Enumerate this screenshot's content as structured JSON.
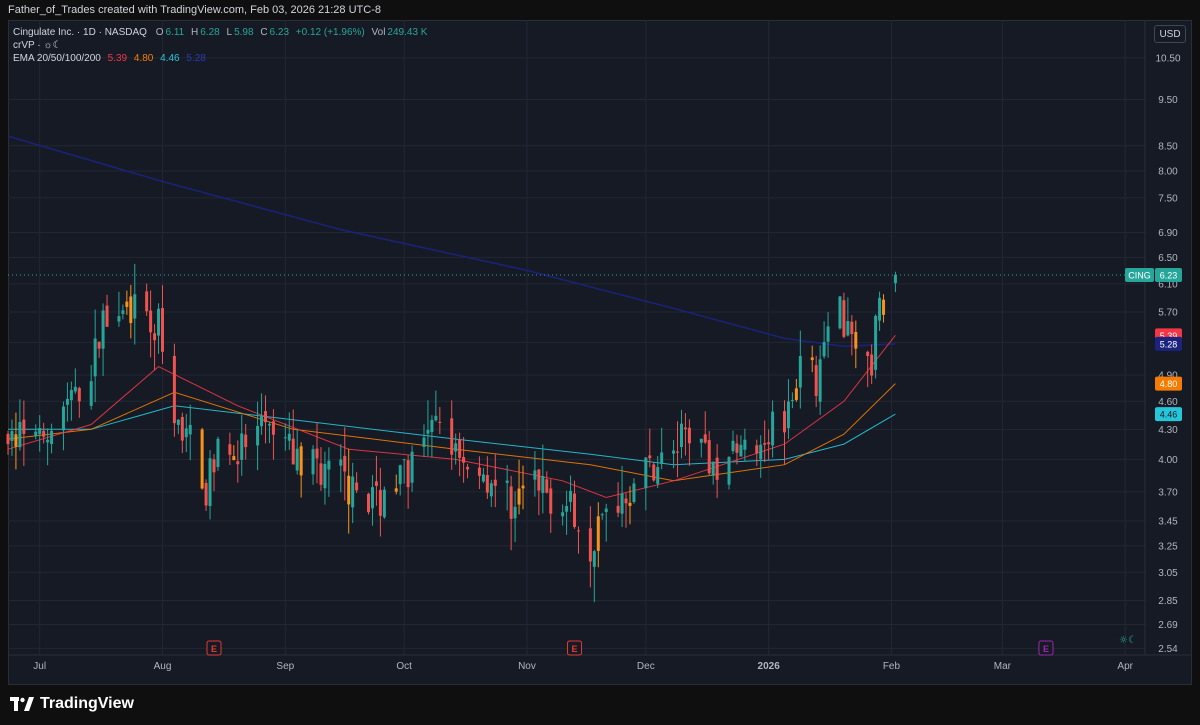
{
  "header": {
    "credit": "Father_of_Trades created with TradingView.com, Feb 03, 2026 21:28 UTC-8"
  },
  "legend": {
    "symbol": "Cingulate Inc. · 1D · NASDAQ",
    "o_label": "O",
    "o": "6.11",
    "h_label": "H",
    "h": "6.28",
    "l_label": "L",
    "l": "5.98",
    "c_label": "C",
    "c": "6.23",
    "change": "+0.12 (+1.96%)",
    "vol_label": "Vol",
    "vol": "249.43 K",
    "line2": "crVP · ☼☾",
    "ema_label": "EMA 20/50/100/200",
    "ema20": "5.39",
    "ema50": "4.80",
    "ema100": "4.46",
    "ema200": "5.28"
  },
  "currency": "USD",
  "brand": "TradingView",
  "colors": {
    "up": "#26a69a",
    "down": "#ef5350",
    "neutral": "#f7931a",
    "ema20": "#f23645",
    "ema50": "#f57c00",
    "ema100": "#26c6da",
    "ema200": "#1a237e",
    "earnings": "#e53935",
    "dividend": "#9c27b0"
  },
  "chart_data": {
    "type": "candlestick",
    "symbol": "CING",
    "y_scale": "log",
    "y_ticks": [
      "10.50",
      "9.50",
      "8.50",
      "8.00",
      "7.50",
      "6.90",
      "6.50",
      "6.10",
      "5.70",
      "5.30",
      "4.90",
      "4.60",
      "4.30",
      "4.00",
      "3.70",
      "3.45",
      "3.25",
      "3.05",
      "2.85",
      "2.69",
      "2.54"
    ],
    "x_ticks": [
      "Jul",
      "Aug",
      "Sep",
      "Oct",
      "Nov",
      "Dec",
      "2026",
      "Feb",
      "Mar",
      "Apr"
    ],
    "x_tick_dates": [
      "2025-07-01",
      "2025-08-01",
      "2025-09-01",
      "2025-10-01",
      "2025-11-01",
      "2025-12-01",
      "2026-01-01",
      "2026-02-01",
      "2026-03-01",
      "2026-04-01"
    ],
    "x_range": [
      "2025-06-23",
      "2026-04-06"
    ],
    "y_range": [
      2.5,
      11.5
    ],
    "last_price": {
      "label": "CING",
      "value": "6.23"
    },
    "price_labels": [
      {
        "value": "5.39",
        "color": "#f23645"
      },
      {
        "value": "5.28",
        "color": "#1a237e"
      },
      {
        "value": "4.80",
        "color": "#f57c00"
      },
      {
        "value": "4.46",
        "color": "#26c6da"
      }
    ],
    "earnings_markers": [
      {
        "date": "2025-08-14",
        "label": "E"
      },
      {
        "date": "2025-11-13",
        "label": "E"
      },
      {
        "date": "2026-03-12",
        "label": "E"
      }
    ],
    "ohlc_points": [
      [
        "2025-06-23",
        4.2
      ],
      [
        "2025-07-01",
        4.15
      ],
      [
        "2025-07-07",
        4.5
      ],
      [
        "2025-07-14",
        4.85
      ],
      [
        "2025-07-17",
        5.6
      ],
      [
        "2025-07-21",
        5.95
      ],
      [
        "2025-07-25",
        5.6
      ],
      [
        "2025-07-31",
        5.5
      ],
      [
        "2025-08-01",
        5.05
      ],
      [
        "2025-08-04",
        4.3
      ],
      [
        "2025-08-08",
        4.2
      ],
      [
        "2025-08-12",
        3.7
      ],
      [
        "2025-08-15",
        4.2
      ],
      [
        "2025-08-20",
        4.05
      ],
      [
        "2025-08-27",
        4.3
      ],
      [
        "2025-09-03",
        4.05
      ],
      [
        "2025-09-10",
        3.95
      ],
      [
        "2025-09-17",
        3.75
      ],
      [
        "2025-09-24",
        3.65
      ],
      [
        "2025-10-01",
        3.9
      ],
      [
        "2025-10-06",
        4.1
      ],
      [
        "2025-10-10",
        4.35
      ],
      [
        "2025-10-14",
        4.15
      ],
      [
        "2025-10-20",
        3.9
      ],
      [
        "2025-10-27",
        3.65
      ],
      [
        "2025-11-03",
        3.75
      ],
      [
        "2025-11-10",
        3.65
      ],
      [
        "2025-11-17",
        3.3
      ],
      [
        "2025-11-21",
        3.5
      ],
      [
        "2025-11-25",
        3.7
      ],
      [
        "2025-12-01",
        3.9
      ],
      [
        "2025-12-08",
        4.05
      ],
      [
        "2025-12-12",
        4.4
      ],
      [
        "2025-12-16",
        4.0
      ],
      [
        "2025-12-22",
        4.05
      ],
      [
        "2025-12-29",
        4.2
      ],
      [
        "2026-01-05",
        4.55
      ],
      [
        "2026-01-09",
        4.95
      ],
      [
        "2026-01-13",
        4.8
      ],
      [
        "2026-01-16",
        5.5
      ],
      [
        "2026-01-20",
        5.75
      ],
      [
        "2026-01-23",
        5.4
      ],
      [
        "2026-01-27",
        4.95
      ],
      [
        "2026-01-29",
        5.85
      ],
      [
        "2026-02-02",
        6.23
      ]
    ],
    "ema_points": {
      "ema20": [
        [
          "2025-06-23",
          4.1
        ],
        [
          "2025-07-14",
          4.35
        ],
        [
          "2025-07-31",
          5.0
        ],
        [
          "2025-08-20",
          4.55
        ],
        [
          "2025-09-17",
          4.1
        ],
        [
          "2025-10-14",
          4.0
        ],
        [
          "2025-11-10",
          3.8
        ],
        [
          "2025-11-21",
          3.65
        ],
        [
          "2025-12-08",
          3.8
        ],
        [
          "2026-01-05",
          4.15
        ],
        [
          "2026-01-20",
          4.6
        ],
        [
          "2026-02-02",
          5.39
        ]
      ],
      "ema50": [
        [
          "2025-06-23",
          4.2
        ],
        [
          "2025-07-14",
          4.3
        ],
        [
          "2025-08-04",
          4.7
        ],
        [
          "2025-09-03",
          4.3
        ],
        [
          "2025-10-14",
          4.1
        ],
        [
          "2025-11-17",
          3.95
        ],
        [
          "2025-12-08",
          3.8
        ],
        [
          "2026-01-05",
          3.95
        ],
        [
          "2026-01-20",
          4.25
        ],
        [
          "2026-02-02",
          4.8
        ]
      ],
      "ema100": [
        [
          "2025-06-23",
          4.3
        ],
        [
          "2025-07-14",
          4.3
        ],
        [
          "2025-08-04",
          4.55
        ],
        [
          "2025-09-03",
          4.4
        ],
        [
          "2025-10-14",
          4.2
        ],
        [
          "2025-11-17",
          4.05
        ],
        [
          "2025-12-08",
          3.95
        ],
        [
          "2026-01-05",
          4.0
        ],
        [
          "2026-01-20",
          4.15
        ],
        [
          "2026-02-02",
          4.46
        ]
      ],
      "ema200": [
        [
          "2025-06-23",
          8.7
        ],
        [
          "2025-08-01",
          7.8
        ],
        [
          "2025-09-15",
          6.95
        ],
        [
          "2025-11-01",
          6.3
        ],
        [
          "2025-12-08",
          5.75
        ],
        [
          "2026-01-05",
          5.35
        ],
        [
          "2026-01-20",
          5.25
        ],
        [
          "2026-02-02",
          5.28
        ]
      ]
    }
  }
}
